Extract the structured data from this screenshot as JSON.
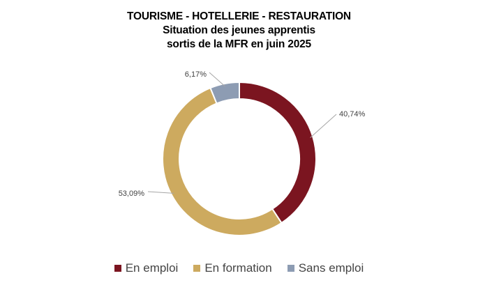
{
  "chart_data": {
    "type": "pie",
    "variant": "donut",
    "title": [
      "TOURISME - HOTELLERIE - RESTAURATION",
      "Situation des jeunes apprentis",
      "sortis de la MFR en juin 2025"
    ],
    "categories": [
      "En emploi",
      "En formation",
      "Sans emploi"
    ],
    "values": [
      40.74,
      53.09,
      6.17
    ],
    "labels": [
      "40,74%",
      "53,09%",
      "6,17%"
    ],
    "colors": [
      "#7b1520",
      "#cdaa5f",
      "#8d9cb3"
    ],
    "legend_position": "bottom"
  }
}
